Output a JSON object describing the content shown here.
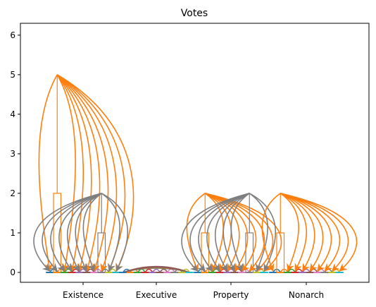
{
  "chart_data": {
    "type": "bar",
    "title": "Votes",
    "xlabel": "",
    "ylabel": "",
    "categories": [
      "Existence",
      "Executive",
      "Property",
      "Nonarch"
    ],
    "ylim": [
      -0.25,
      6.3
    ],
    "yticks": [
      0,
      1,
      2,
      3,
      4,
      5,
      6
    ],
    "grid": false,
    "groups": [
      {
        "category": "Existence",
        "bars": [
          {
            "color": "#1f77b4",
            "value": 0
          },
          {
            "color": "#ff7f0e",
            "value": 2
          },
          {
            "color": "#2ca02c",
            "value": 0
          },
          {
            "color": "#d62728",
            "value": 0
          },
          {
            "color": "#9467bd",
            "value": 0
          },
          {
            "color": "#8c564b",
            "value": 0
          },
          {
            "color": "#e377c2",
            "value": 0
          },
          {
            "color": "#7f7f7f",
            "value": 1
          },
          {
            "color": "#bcbd22",
            "value": 0
          },
          {
            "color": "#17becf",
            "value": 0
          }
        ],
        "arrows": [
          {
            "color": "#ff7f0e",
            "from_bar": 1,
            "from_value": 5,
            "to_bars": [
              0,
              2,
              3,
              4,
              5,
              6,
              7,
              8,
              9
            ]
          },
          {
            "color": "#7f7f7f",
            "from_bar": 7,
            "from_value": 2,
            "to_bars": [
              0,
              1,
              2,
              3,
              4,
              5,
              6,
              8,
              9
            ]
          }
        ]
      },
      {
        "category": "Executive",
        "bars": [
          {
            "color": "#1f77b4",
            "value": 0
          },
          {
            "color": "#ff7f0e",
            "value": 0
          },
          {
            "color": "#2ca02c",
            "value": 0
          },
          {
            "color": "#d62728",
            "value": 0
          },
          {
            "color": "#9467bd",
            "value": 0
          },
          {
            "color": "#8c564b",
            "value": 0
          },
          {
            "color": "#e377c2",
            "value": 0
          },
          {
            "color": "#7f7f7f",
            "value": 0
          },
          {
            "color": "#bcbd22",
            "value": 0
          },
          {
            "color": "#17becf",
            "value": 0
          }
        ],
        "arrows": []
      },
      {
        "category": "Property",
        "bars": [
          {
            "color": "#1f77b4",
            "value": 0
          },
          {
            "color": "#ff7f0e",
            "value": 1
          },
          {
            "color": "#2ca02c",
            "value": 0
          },
          {
            "color": "#d62728",
            "value": 0
          },
          {
            "color": "#9467bd",
            "value": 0
          },
          {
            "color": "#8c564b",
            "value": 0
          },
          {
            "color": "#e377c2",
            "value": 0
          },
          {
            "color": "#7f7f7f",
            "value": 1
          },
          {
            "color": "#bcbd22",
            "value": 0
          },
          {
            "color": "#17becf",
            "value": 0
          }
        ],
        "arrows": [
          {
            "color": "#ff7f0e",
            "from_bar": 1,
            "from_value": 2,
            "to_bars": [
              0,
              2,
              3,
              4,
              5,
              6,
              7,
              8,
              9
            ]
          },
          {
            "color": "#7f7f7f",
            "from_bar": 7,
            "from_value": 2,
            "to_bars": [
              0,
              1,
              2,
              3,
              4,
              5,
              6,
              8,
              9
            ]
          }
        ]
      },
      {
        "category": "Nonarch",
        "bars": [
          {
            "color": "#1f77b4",
            "value": 0
          },
          {
            "color": "#ff7f0e",
            "value": 1
          },
          {
            "color": "#2ca02c",
            "value": 0
          },
          {
            "color": "#d62728",
            "value": 0
          },
          {
            "color": "#9467bd",
            "value": 0
          },
          {
            "color": "#8c564b",
            "value": 0
          },
          {
            "color": "#e377c2",
            "value": 0
          },
          {
            "color": "#7f7f7f",
            "value": 0
          },
          {
            "color": "#bcbd22",
            "value": 0
          },
          {
            "color": "#17becf",
            "value": 0
          }
        ],
        "arrows": [
          {
            "color": "#ff7f0e",
            "from_bar": 1,
            "from_value": 2,
            "to_bars": [
              0,
              2,
              3,
              4,
              5,
              6,
              7,
              8,
              9
            ]
          }
        ]
      }
    ],
    "colors": {
      "axis": "#000000",
      "background": "#ffffff"
    }
  }
}
